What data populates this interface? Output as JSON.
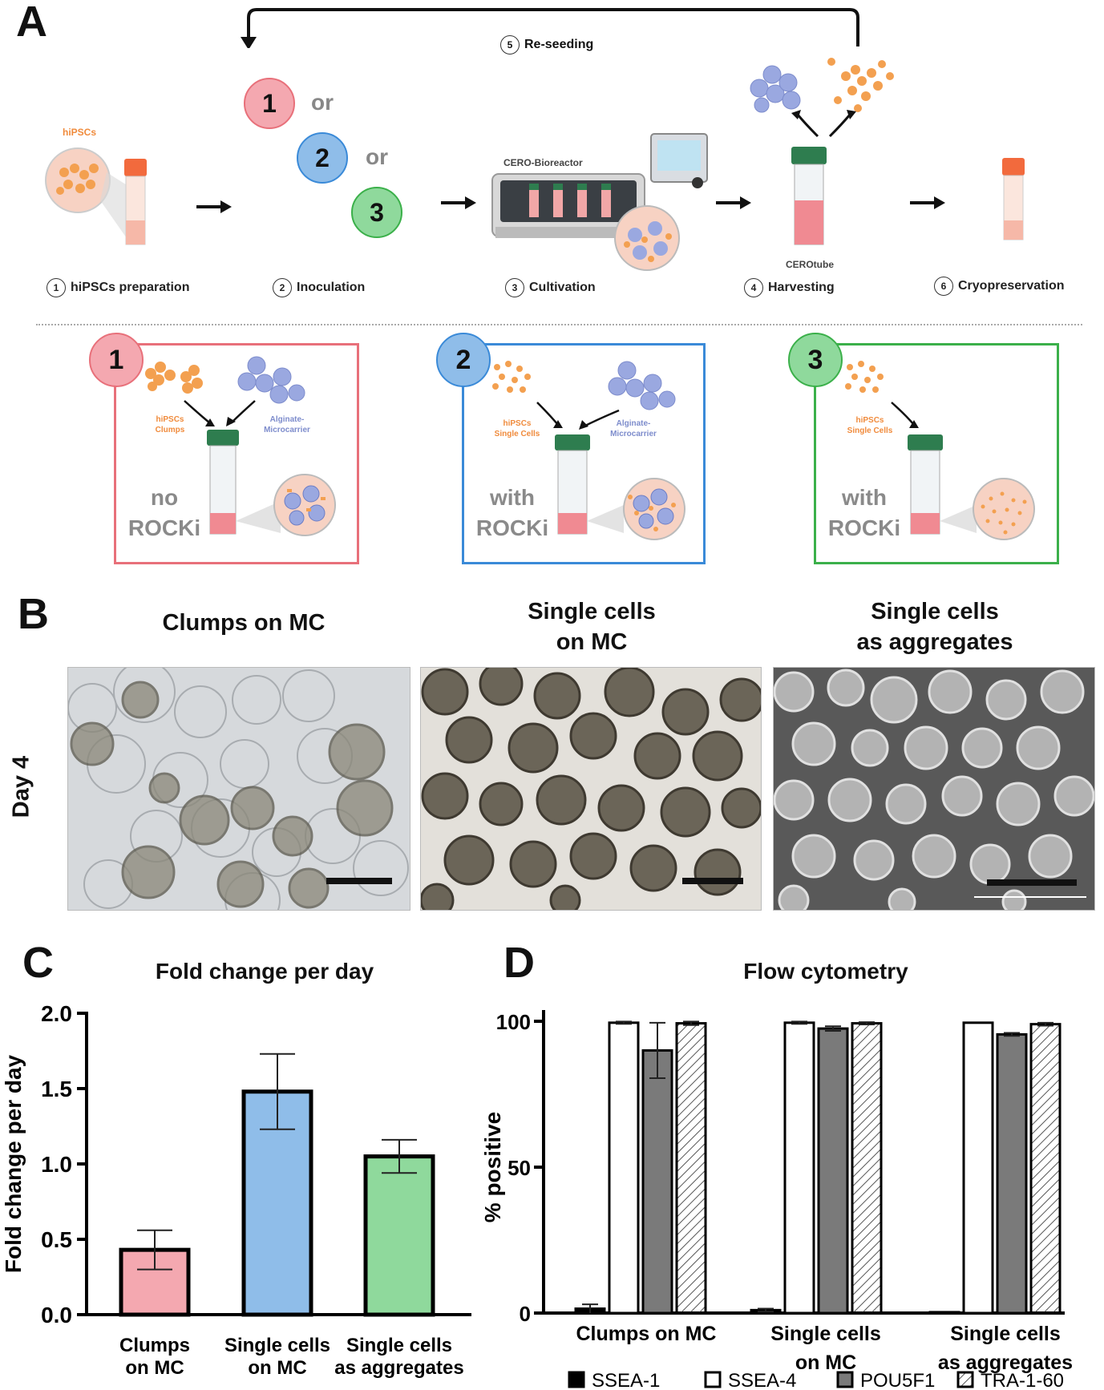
{
  "panels": {
    "a": "A",
    "b": "B",
    "c": "C",
    "d": "D"
  },
  "workflow": {
    "reseeding": {
      "num": "5",
      "label": "Re-seeding"
    },
    "steps": [
      {
        "num": "1",
        "label": "hiPSCs preparation"
      },
      {
        "num": "2",
        "label": "Inoculation"
      },
      {
        "num": "3",
        "label": "Cultivation"
      },
      {
        "num": "4",
        "label": "Harvesting"
      },
      {
        "num": "6",
        "label": "Cryopreservation"
      }
    ],
    "hipscs_label": "hiPSCs",
    "bioreactor_label": "CERO-Bioreactor",
    "cerotube_label": "CEROtube",
    "options": {
      "one": "1",
      "two": "2",
      "three": "3",
      "or": "or"
    }
  },
  "conditions": [
    {
      "num": "1",
      "cells_line1": "hiPSCs",
      "cells_line2": "Clumps",
      "mc_line1": "Alginate-",
      "mc_line2": "Microcarrier",
      "rocki_line1": "no",
      "rocki_line2": "ROCKi",
      "color": "#e8707a"
    },
    {
      "num": "2",
      "cells_line1": "hiPSCs",
      "cells_line2": "Single Cells",
      "mc_line1": "Alginate-",
      "mc_line2": "Microcarrier",
      "rocki_line1": "with",
      "rocki_line2": "ROCKi",
      "color": "#3a8ad8"
    },
    {
      "num": "3",
      "cells_line1": "hiPSCs",
      "cells_line2": "Single Cells",
      "rocki_line1": "with",
      "rocki_line2": "ROCKi",
      "color": "#3bb04a"
    }
  ],
  "micrographs": {
    "row_label": "Day 4",
    "columns": [
      {
        "title_line1": "Clumps on MC",
        "title_line2": ""
      },
      {
        "title_line1": "Single cells",
        "title_line2": "on MC"
      },
      {
        "title_line1": "Single cells",
        "title_line2": "as aggregates"
      }
    ]
  },
  "chart_data": [
    {
      "type": "bar",
      "title": "Fold change per day",
      "ylabel": "Fold change per day",
      "ylim": [
        0,
        2.0
      ],
      "yticks": [
        "0.0",
        "0.5",
        "1.0",
        "1.5",
        "2.0"
      ],
      "categories": [
        [
          "Clumps",
          "on MC"
        ],
        [
          "Single cells",
          "on MC"
        ],
        [
          "Single cells",
          "as aggregates"
        ]
      ],
      "values": [
        0.43,
        1.48,
        1.05
      ],
      "errors": [
        0.13,
        0.25,
        0.11
      ],
      "colors": [
        "#f4a8b0",
        "#8fbde9",
        "#8fd99c"
      ]
    },
    {
      "type": "bar",
      "title": "Flow cytometry",
      "ylabel": "% positive",
      "ylim": [
        0,
        100
      ],
      "yticks": [
        "0",
        "50",
        "100"
      ],
      "categories": [
        [
          "Clumps on MC",
          ""
        ],
        [
          "Single cells",
          "on MC"
        ],
        [
          "Single cells",
          "as aggregates"
        ]
      ],
      "series": [
        {
          "name": "SSEA-1",
          "values": [
            1.5,
            1.0,
            0.3
          ],
          "errors": [
            1.5,
            0.5,
            0
          ],
          "fill": "#000000"
        },
        {
          "name": "SSEA-4",
          "values": [
            99.5,
            99.5,
            99.5
          ],
          "errors": [
            0.4,
            0.4,
            0
          ],
          "fill": "#ffffff"
        },
        {
          "name": "POU5F1",
          "values": [
            90,
            97.5,
            95.5
          ],
          "errors": [
            9.5,
            0.8,
            0.5
          ],
          "fill": "#7a7a7a"
        },
        {
          "name": "TRA-1-60",
          "values": [
            99.3,
            99.3,
            99.0
          ],
          "errors": [
            0.6,
            0.4,
            0.5
          ],
          "fill": "hatch"
        }
      ]
    }
  ]
}
